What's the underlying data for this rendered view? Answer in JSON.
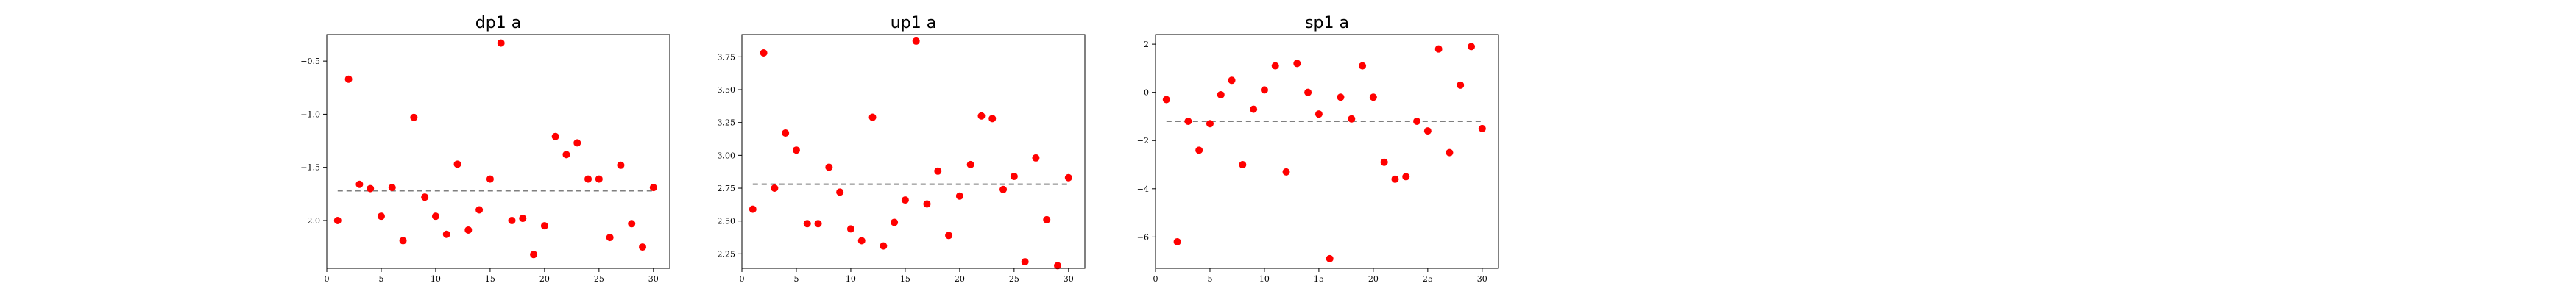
{
  "chart_data": [
    {
      "type": "scatter",
      "title": "dp1 a",
      "xlabel": "",
      "ylabel": "",
      "xlim": [
        0,
        31.5
      ],
      "ylim": [
        -2.45,
        -0.25
      ],
      "xticks": [
        0,
        5,
        10,
        15,
        20,
        25,
        30
      ],
      "yticks": [
        -2.0,
        -1.5,
        -1.0,
        -0.5
      ],
      "ytick_labels": [
        "−2.0",
        "−1.5",
        "−1.0",
        "−0.5"
      ],
      "grid": false,
      "marker_color": "#ff0000",
      "reference_line": {
        "y": -1.72,
        "color": "#7f7f7f",
        "style": "dashed",
        "x_range": [
          1,
          30
        ]
      },
      "x": [
        1,
        2,
        3,
        4,
        5,
        6,
        7,
        8,
        9,
        10,
        11,
        12,
        13,
        14,
        15,
        16,
        17,
        18,
        19,
        20,
        21,
        22,
        23,
        24,
        25,
        26,
        27,
        28,
        29,
        30
      ],
      "y": [
        -2.0,
        -0.67,
        -1.66,
        -1.7,
        -1.96,
        -1.69,
        -2.19,
        -1.03,
        -1.78,
        -1.96,
        -2.13,
        -1.47,
        -2.09,
        -1.9,
        -1.61,
        -0.33,
        -2.0,
        -1.98,
        -2.32,
        -2.05,
        -1.21,
        -1.38,
        -1.27,
        -1.61,
        -1.61,
        -2.16,
        -1.48,
        -2.03,
        -2.25,
        -1.69
      ]
    },
    {
      "type": "scatter",
      "title": "up1 a",
      "xlabel": "",
      "ylabel": "",
      "xlim": [
        0,
        31.5
      ],
      "ylim": [
        2.14,
        3.92
      ],
      "xticks": [
        0,
        5,
        10,
        15,
        20,
        25,
        30
      ],
      "yticks": [
        2.25,
        2.5,
        2.75,
        3.0,
        3.25,
        3.5,
        3.75
      ],
      "ytick_labels": [
        "2.25",
        "2.50",
        "2.75",
        "3.00",
        "3.25",
        "3.50",
        "3.75"
      ],
      "grid": false,
      "marker_color": "#ff0000",
      "reference_line": {
        "y": 2.78,
        "color": "#7f7f7f",
        "style": "dashed",
        "x_range": [
          1,
          30
        ]
      },
      "x": [
        1,
        2,
        3,
        4,
        5,
        6,
        7,
        8,
        9,
        10,
        11,
        12,
        13,
        14,
        15,
        16,
        17,
        18,
        19,
        20,
        21,
        22,
        23,
        24,
        25,
        26,
        27,
        28,
        29,
        30
      ],
      "y": [
        2.59,
        3.78,
        2.75,
        3.17,
        3.04,
        2.48,
        2.48,
        2.91,
        2.72,
        2.44,
        2.35,
        3.29,
        2.31,
        2.49,
        2.66,
        3.87,
        2.63,
        2.88,
        2.39,
        2.69,
        2.93,
        3.3,
        3.28,
        2.74,
        2.84,
        2.19,
        2.98,
        2.51,
        2.16,
        2.83
      ]
    },
    {
      "type": "scatter",
      "title": "sp1 a",
      "xlabel": "",
      "ylabel": "",
      "xlim": [
        0,
        31.5
      ],
      "ylim": [
        -7.3,
        2.4
      ],
      "xticks": [
        0,
        5,
        10,
        15,
        20,
        25,
        30
      ],
      "yticks": [
        -6,
        -4,
        -2,
        0,
        2
      ],
      "ytick_labels": [
        "−6",
        "−4",
        "−2",
        "0",
        "2"
      ],
      "grid": false,
      "marker_color": "#ff0000",
      "reference_line": {
        "y": -1.2,
        "color": "#7f7f7f",
        "style": "dashed",
        "x_range": [
          1,
          30
        ]
      },
      "x": [
        1,
        2,
        3,
        4,
        5,
        6,
        7,
        8,
        9,
        10,
        11,
        12,
        13,
        14,
        15,
        16,
        17,
        18,
        19,
        20,
        21,
        22,
        23,
        24,
        25,
        26,
        27,
        28,
        29,
        30
      ],
      "y": [
        -0.3,
        -6.2,
        -1.2,
        -2.4,
        -1.3,
        -0.1,
        0.5,
        -3.0,
        -0.7,
        0.1,
        1.1,
        -3.3,
        1.2,
        0.0,
        -0.9,
        -6.9,
        -0.2,
        -1.1,
        1.1,
        -0.2,
        -2.9,
        -3.6,
        -3.5,
        -1.2,
        -1.6,
        1.8,
        -2.5,
        0.3,
        1.9,
        -1.5
      ]
    }
  ]
}
